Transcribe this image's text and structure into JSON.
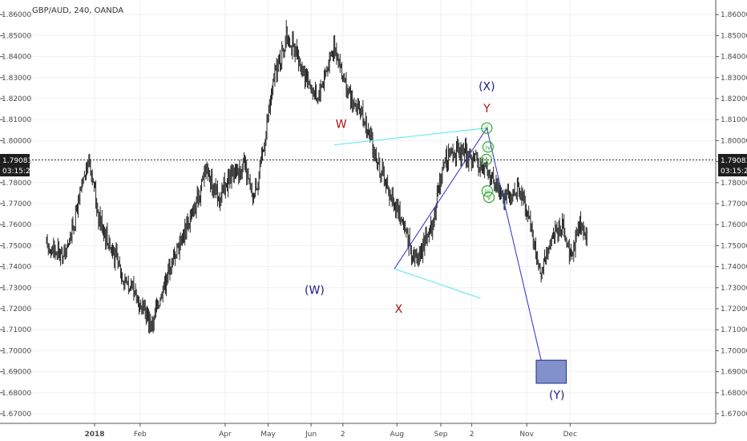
{
  "header": {
    "title": "GBP/AUD, 240, OANDA"
  },
  "price_badge": {
    "price": "1.79083",
    "countdown": "03:15:20"
  },
  "colors": {
    "candles": "#111111",
    "grid": "#eef0f4",
    "channel": "#5ee8f0",
    "projection": "#3b3fc4",
    "target_box_fill": "#8291c9",
    "target_box_stroke": "#1c2d8a",
    "label_red": "#b01010",
    "label_blue": "#1a1a8c",
    "circle_green": "#2fa82f"
  },
  "chart_data": {
    "type": "candlestick",
    "title": "GBP/AUD, 240, OANDA",
    "ylim": [
      1.665,
      1.865
    ],
    "y_ticks": [
      "1.67000",
      "1.68000",
      "1.69000",
      "1.70000",
      "1.71000",
      "1.72000",
      "1.73000",
      "1.74000",
      "1.75000",
      "1.76000",
      "1.77000",
      "1.78000",
      "1.79000",
      "1.80000",
      "1.81000",
      "1.82000",
      "1.83000",
      "1.84000",
      "1.85000",
      "1.86000"
    ],
    "x_ticks": [
      "2018",
      "Feb",
      "Apr",
      "May",
      "Jun",
      "2",
      "Aug",
      "Sep",
      "2",
      "Nov",
      "Dec"
    ],
    "x_tick_positions": [
      0.22,
      1.28,
      3.26,
      4.26,
      5.26,
      6.0,
      7.26,
      8.28,
      9.0,
      10.28,
      11.29
    ],
    "last_price": 1.79083,
    "grid": true,
    "path": [
      [
        -0.9,
        1.75
      ],
      [
        -0.5,
        1.745
      ],
      [
        -0.3,
        1.758
      ],
      [
        0.1,
        1.792
      ],
      [
        0.3,
        1.765
      ],
      [
        0.55,
        1.752
      ],
      [
        0.9,
        1.735
      ],
      [
        1.3,
        1.722
      ],
      [
        1.55,
        1.712
      ],
      [
        1.8,
        1.73
      ],
      [
        2.2,
        1.752
      ],
      [
        2.6,
        1.77
      ],
      [
        2.8,
        1.788
      ],
      [
        3.1,
        1.772
      ],
      [
        3.4,
        1.783
      ],
      [
        3.7,
        1.788
      ],
      [
        3.9,
        1.772
      ],
      [
        4.1,
        1.79
      ],
      [
        4.4,
        1.83
      ],
      [
        4.7,
        1.85
      ],
      [
        5.1,
        1.832
      ],
      [
        5.4,
        1.82
      ],
      [
        5.8,
        1.846
      ],
      [
        6.1,
        1.822
      ],
      [
        6.5,
        1.81
      ],
      [
        6.8,
        1.79
      ],
      [
        7.1,
        1.775
      ],
      [
        7.4,
        1.76
      ],
      [
        7.7,
        1.743
      ],
      [
        8.1,
        1.762
      ],
      [
        8.35,
        1.79
      ],
      [
        8.6,
        1.795
      ],
      [
        9.0,
        1.792
      ],
      [
        9.3,
        1.787
      ],
      [
        9.6,
        1.778
      ],
      [
        9.9,
        1.772
      ],
      [
        10.1,
        1.778
      ],
      [
        10.35,
        1.762
      ],
      [
        10.6,
        1.735
      ],
      [
        10.85,
        1.755
      ],
      [
        11.1,
        1.76
      ],
      [
        11.3,
        1.745
      ],
      [
        11.5,
        1.76
      ],
      [
        11.7,
        1.752
      ]
    ],
    "annotations": {
      "channel_upper": [
        [
          5.8,
          1.798
        ],
        [
          9.35,
          1.806
        ]
      ],
      "channel_lower": [
        [
          7.2,
          1.739
        ],
        [
          9.2,
          1.725
        ]
      ],
      "rise_line": [
        [
          7.2,
          1.739
        ],
        [
          9.35,
          1.806
        ]
      ],
      "projection_line": [
        [
          9.35,
          1.806
        ],
        [
          10.62,
          1.695
        ]
      ],
      "target_box": {
        "x0": 10.5,
        "x1": 11.2,
        "y0": 1.6845,
        "y1": 1.6955
      },
      "wave_labels": [
        {
          "text": "(X)",
          "x": 9.35,
          "y": 1.824,
          "color": "blue"
        },
        {
          "text": "Y",
          "x": 9.35,
          "y": 1.8135,
          "color": "red"
        },
        {
          "text": "W",
          "x": 5.96,
          "y": 1.806,
          "color": "red"
        },
        {
          "text": "(W)",
          "x": 5.34,
          "y": 1.727,
          "color": "blue"
        },
        {
          "text": "X",
          "x": 7.3,
          "y": 1.718,
          "color": "red"
        },
        {
          "text": "(Y)",
          "x": 10.98,
          "y": 1.677,
          "color": "blue"
        }
      ],
      "circle_labels": [
        {
          "text": "ii",
          "x": 9.35,
          "y": 1.806
        },
        {
          "text": "iv",
          "x": 9.38,
          "y": 1.797
        },
        {
          "text": "i",
          "x": 9.34,
          "y": 1.791
        },
        {
          "text": "iii",
          "x": 9.36,
          "y": 1.776
        },
        {
          "text": "v",
          "x": 9.4,
          "y": 1.773
        }
      ]
    }
  }
}
